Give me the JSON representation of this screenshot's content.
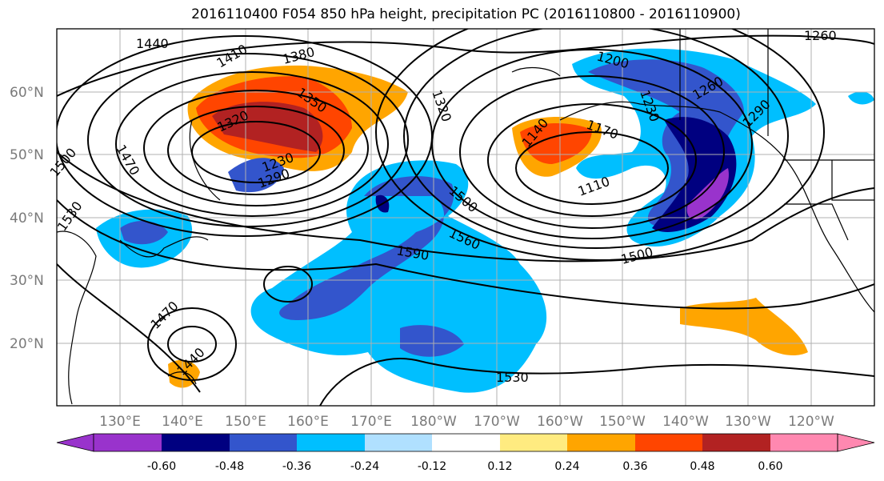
{
  "title": "2016110400 F054 850 hPa height, precipitation PC (2016110800 - 2016110900)",
  "lat_labels": [
    "60°N",
    "50°N",
    "40°N",
    "30°N",
    "20°N"
  ],
  "lon_labels": [
    "130°E",
    "140°E",
    "150°E",
    "160°E",
    "170°E",
    "180°W",
    "170°W",
    "160°W",
    "150°W",
    "140°W",
    "130°W",
    "120°W"
  ],
  "contour_labels": [
    "1440",
    "1410",
    "1380",
    "1350",
    "1320",
    "1290",
    "1260",
    "1230",
    "1200",
    "1170",
    "1140",
    "1110",
    "1500",
    "1470",
    "1530",
    "1560",
    "1590",
    "1500",
    "1470",
    "1440",
    "1530",
    "1320",
    "1260",
    "1290",
    "1230",
    "1500"
  ],
  "colorbar": {
    "ticks": [
      "-0.60",
      "-0.48",
      "-0.36",
      "-0.24",
      "-0.12",
      "0.12",
      "0.24",
      "0.36",
      "0.48",
      "0.60"
    ],
    "colors": [
      "#9933cc",
      "#000080",
      "#3355cc",
      "#00bfff",
      "#b0e0ff",
      "#ffffff",
      "#ffeb80",
      "#ffa500",
      "#ff4500",
      "#b22222",
      "#ff88b0"
    ]
  }
}
